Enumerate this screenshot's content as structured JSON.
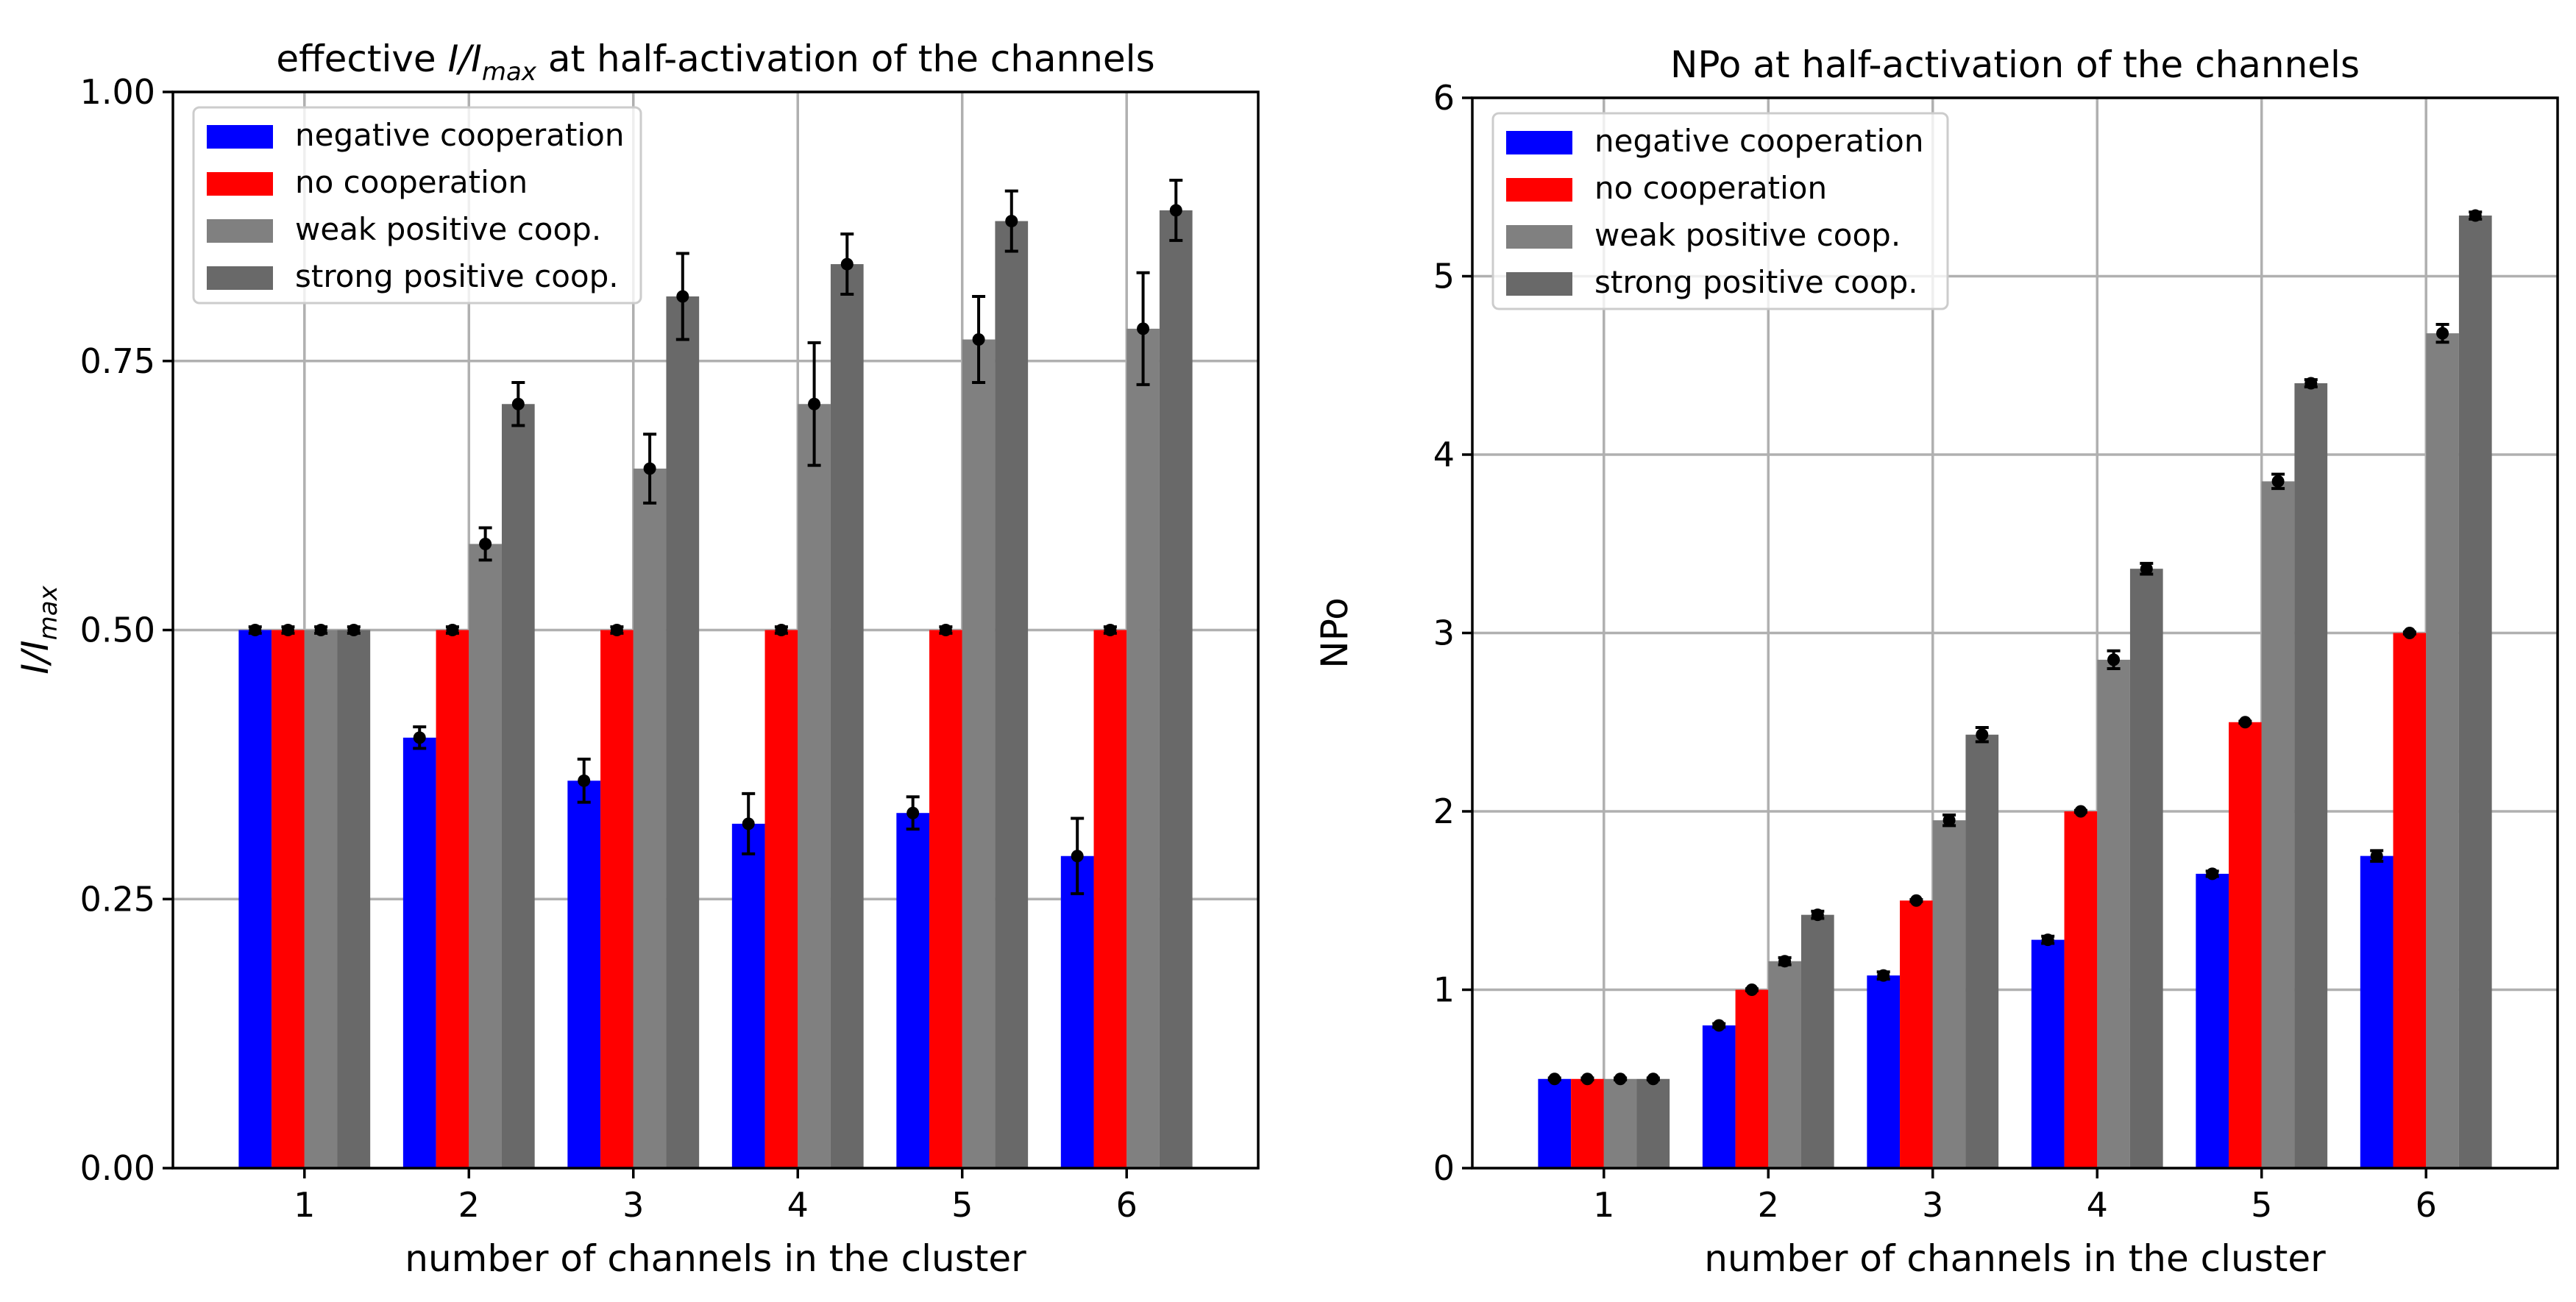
{
  "colors": {
    "negative": "#0000ff",
    "none": "#ff0000",
    "weak": "#808080",
    "strong": "#696969",
    "grid": "#b0b0b0",
    "errorbar": "#000000"
  },
  "chart_data": [
    {
      "type": "bar",
      "title_pre": "effective ",
      "title_math": "I/I",
      "title_sub": "max",
      "title_post": " at half-activation of the channels",
      "xlabel": "number of channels in the cluster",
      "ylabel_math": "I/I",
      "ylabel_sub": "max",
      "categories": [
        "1",
        "2",
        "3",
        "4",
        "5",
        "6"
      ],
      "ylim": [
        0,
        1
      ],
      "yticks": [
        "0.00",
        "0.25",
        "0.50",
        "0.75",
        "1.00"
      ],
      "grid": true,
      "legend_position": "top-left",
      "error_bars": true,
      "series": [
        {
          "name": "negative cooperation",
          "color_key": "negative",
          "values": [
            0.5,
            0.4,
            0.36,
            0.32,
            0.33,
            0.29
          ],
          "errors": [
            0.003,
            0.01,
            0.02,
            0.028,
            0.015,
            0.035
          ]
        },
        {
          "name": "no cooperation",
          "color_key": "none",
          "values": [
            0.5,
            0.5,
            0.5,
            0.5,
            0.5,
            0.5
          ],
          "errors": [
            0.003,
            0.003,
            0.003,
            0.003,
            0.003,
            0.003
          ]
        },
        {
          "name": "weak positive coop.",
          "color_key": "weak",
          "values": [
            0.5,
            0.58,
            0.65,
            0.71,
            0.77,
            0.78
          ],
          "errors": [
            0.003,
            0.015,
            0.032,
            0.057,
            0.04,
            0.052
          ]
        },
        {
          "name": "strong positive coop.",
          "color_key": "strong",
          "values": [
            0.5,
            0.71,
            0.81,
            0.84,
            0.88,
            0.89
          ],
          "errors": [
            0.003,
            0.02,
            0.04,
            0.028,
            0.028,
            0.028
          ]
        }
      ]
    },
    {
      "type": "bar",
      "title": "NPo at half-activation of the channels",
      "xlabel": "number of channels in the cluster",
      "ylabel": "NPo",
      "categories": [
        "1",
        "2",
        "3",
        "4",
        "5",
        "6"
      ],
      "ylim": [
        0,
        6
      ],
      "yticks": [
        "0",
        "1",
        "2",
        "3",
        "4",
        "5",
        "6"
      ],
      "grid": true,
      "legend_position": "top-left",
      "error_bars": true,
      "series": [
        {
          "name": "negative cooperation",
          "color_key": "negative",
          "values": [
            0.5,
            0.8,
            1.08,
            1.28,
            1.65,
            1.75
          ],
          "errors": [
            0.005,
            0.01,
            0.02,
            0.02,
            0.015,
            0.03
          ]
        },
        {
          "name": "no cooperation",
          "color_key": "none",
          "values": [
            0.5,
            1.0,
            1.5,
            2.0,
            2.5,
            3.0
          ],
          "errors": [
            0.005,
            0.005,
            0.005,
            0.005,
            0.005,
            0.005
          ]
        },
        {
          "name": "weak positive coop.",
          "color_key": "weak",
          "values": [
            0.5,
            1.16,
            1.95,
            2.85,
            3.85,
            4.68
          ],
          "errors": [
            0.005,
            0.02,
            0.03,
            0.05,
            0.04,
            0.05
          ]
        },
        {
          "name": "strong positive coop.",
          "color_key": "strong",
          "values": [
            0.5,
            1.42,
            2.43,
            3.36,
            4.4,
            5.34
          ],
          "errors": [
            0.005,
            0.02,
            0.04,
            0.03,
            0.02,
            0.02
          ]
        }
      ]
    }
  ]
}
